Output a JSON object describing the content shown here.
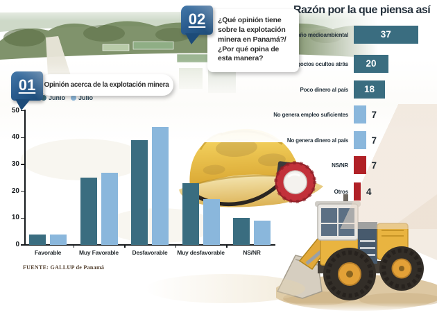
{
  "badge01": {
    "number": "01",
    "label": "Opinión acerca de la explotación minera"
  },
  "badge02": {
    "number": "02",
    "question": "¿Qué opinión tiene sobre la explotación minera en Panamá?/ ¿Por qué opina de esta manera?"
  },
  "source": "FUENTE: GALLUP de Panamá",
  "colors": {
    "teal": "#3a6d80",
    "light_blue": "#8ab7dc",
    "red": "#b02127",
    "badge_navy": "#1d4b76",
    "title_dark": "#25313c"
  },
  "chart_data": [
    {
      "type": "bar",
      "title": "Opinión acerca de la explotación minera",
      "categories": [
        "Favorable",
        "Muy Favorable",
        "Desfavorable",
        "Muy desfavorable",
        "NS/NR"
      ],
      "series": [
        {
          "name": "Junio",
          "color": "#3a6d80",
          "values": [
            4,
            25,
            39,
            23,
            10
          ]
        },
        {
          "name": "Julio",
          "color": "#8ab7dc",
          "values": [
            4,
            27,
            44,
            17,
            9
          ]
        }
      ],
      "xlabel": "",
      "ylabel": "",
      "ylim": [
        0,
        50
      ],
      "yticks": [
        0,
        10,
        20,
        30,
        40,
        50
      ],
      "grid": false,
      "legend_position": "top-left"
    },
    {
      "type": "bar",
      "orientation": "horizontal",
      "title": "Razón por la que piensa así",
      "categories": [
        "Daño medioambiental",
        "Hay negocios ocultos atrás",
        "Poco dinero al país",
        "No genera empleo suficientes",
        "No genera dinero al país",
        "NS/NR",
        "Otros"
      ],
      "values": [
        37,
        20,
        18,
        7,
        7,
        7,
        4
      ],
      "bar_colors": [
        "#3a6d80",
        "#3a6d80",
        "#3a6d80",
        "#8ab7dc",
        "#8ab7dc",
        "#b02127",
        "#b02127"
      ],
      "xlim": [
        0,
        40
      ],
      "value_labels": "inside bar when value is large (37,20,18), right of bar when small (7,7,7,4)"
    }
  ]
}
